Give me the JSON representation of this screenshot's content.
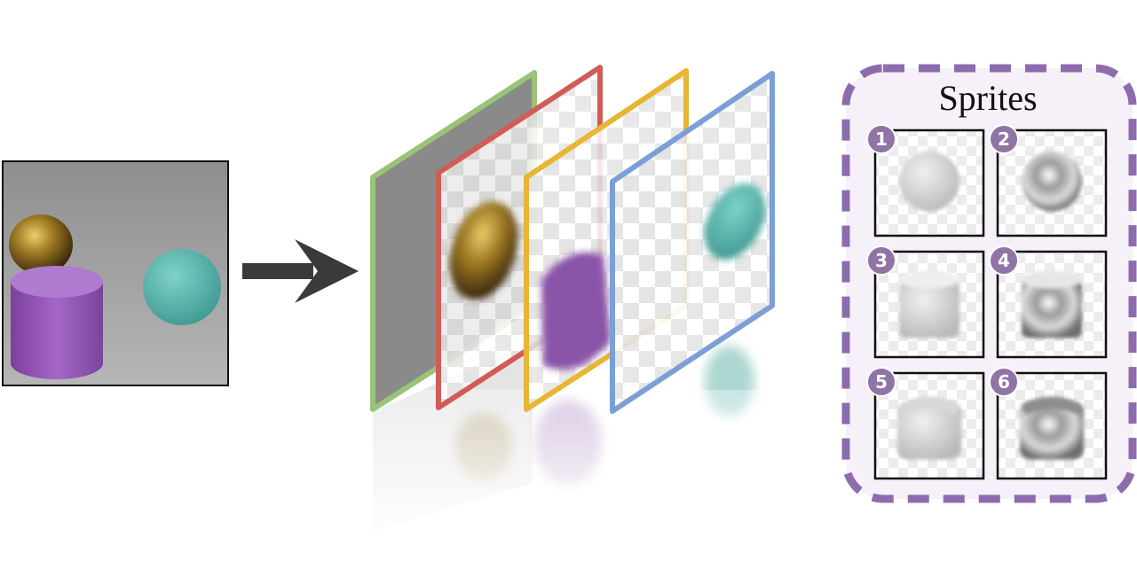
{
  "sprites_panel": {
    "title": "Sprites",
    "border_color": "#8c6cac",
    "fill_color": "#f6f0f8",
    "badge_color": "#8f74a6",
    "sprites": [
      {
        "number": "1",
        "shape": "sphere",
        "material": "matte"
      },
      {
        "number": "2",
        "shape": "sphere",
        "material": "metal"
      },
      {
        "number": "3",
        "shape": "cylinder",
        "material": "matte"
      },
      {
        "number": "4",
        "shape": "cylinder",
        "material": "metal"
      },
      {
        "number": "5",
        "shape": "cube",
        "material": "matte"
      },
      {
        "number": "6",
        "shape": "cube",
        "material": "metal"
      }
    ]
  },
  "layers": [
    {
      "name": "background",
      "frame_color": "#99c478"
    },
    {
      "name": "gold-sphere",
      "frame_color": "#cf5d56"
    },
    {
      "name": "purple-cylinder",
      "frame_color": "#e8b534"
    },
    {
      "name": "cyan-sphere",
      "frame_color": "#7b9fd6"
    }
  ],
  "colors": {
    "arrow": "#3a3a3a",
    "gold": "#9a7a2c",
    "purple": "#8a55a8",
    "cyan": "#57b1a7",
    "scene_background": "#8d8d8d"
  }
}
